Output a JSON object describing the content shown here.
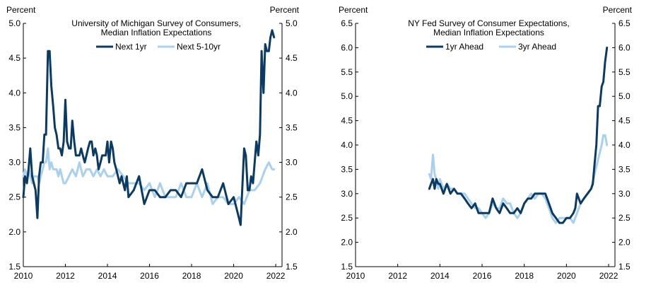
{
  "colors": {
    "dark": "#0b3a63",
    "light": "#a9d0ee",
    "axis": "#000000"
  },
  "chart_data": [
    {
      "type": "line",
      "title_lines": [
        "University of Michigan Survey of Consumers,",
        "Median Inflation Expectations"
      ],
      "ylabel_left": "Percent",
      "ylabel_right": "Percent",
      "xlim": [
        2010,
        2022.3
      ],
      "ylim": [
        1.5,
        5.0
      ],
      "yticks": [
        1.5,
        2.0,
        2.5,
        3.0,
        3.5,
        4.0,
        4.5,
        5.0
      ],
      "ytick_labels": [
        "1.5",
        "2.0",
        "2.5",
        "3.0",
        "3.5",
        "4.0",
        "4.5",
        "5.0"
      ],
      "xticks": [
        2010,
        2012,
        2014,
        2016,
        2018,
        2020,
        2022
      ],
      "xtick_labels": [
        "2010",
        "2012",
        "2014",
        "2016",
        "2018",
        "2020",
        "2022"
      ],
      "legend": [
        "Next 1yr",
        "Next 5-10yr"
      ],
      "series": [
        {
          "name": "Next 1yr",
          "x": [
            2010.0,
            2010.08,
            2010.17,
            2010.25,
            2010.33,
            2010.42,
            2010.5,
            2010.58,
            2010.67,
            2010.75,
            2010.83,
            2010.92,
            2011.0,
            2011.08,
            2011.17,
            2011.25,
            2011.33,
            2011.42,
            2011.5,
            2011.58,
            2011.67,
            2011.75,
            2011.83,
            2011.92,
            2012.0,
            2012.08,
            2012.17,
            2012.25,
            2012.33,
            2012.42,
            2012.5,
            2012.58,
            2012.67,
            2012.75,
            2012.83,
            2012.92,
            2013.0,
            2013.08,
            2013.17,
            2013.25,
            2013.33,
            2013.42,
            2013.5,
            2013.58,
            2013.67,
            2013.75,
            2013.83,
            2013.92,
            2014.0,
            2014.08,
            2014.17,
            2014.25,
            2014.33,
            2014.42,
            2014.5,
            2014.58,
            2014.67,
            2014.75,
            2014.83,
            2014.92,
            2015.0,
            2015.25,
            2015.5,
            2015.75,
            2016.0,
            2016.25,
            2016.5,
            2016.75,
            2017.0,
            2017.25,
            2017.5,
            2017.75,
            2018.0,
            2018.25,
            2018.5,
            2018.75,
            2019.0,
            2019.25,
            2019.5,
            2019.75,
            2020.0,
            2020.17,
            2020.25,
            2020.33,
            2020.42,
            2020.5,
            2020.58,
            2020.67,
            2020.75,
            2020.83,
            2020.92,
            2021.0,
            2021.08,
            2021.17,
            2021.25,
            2021.33,
            2021.42,
            2021.5,
            2021.58,
            2021.67,
            2021.75,
            2021.83,
            2021.92
          ],
          "y": [
            2.5,
            2.8,
            2.7,
            2.9,
            3.2,
            2.8,
            2.7,
            2.6,
            2.2,
            2.8,
            3.0,
            3.0,
            3.4,
            3.4,
            4.6,
            4.6,
            4.1,
            3.8,
            3.5,
            3.4,
            3.2,
            3.2,
            3.1,
            3.3,
            3.9,
            3.3,
            3.2,
            3.2,
            3.6,
            3.3,
            3.1,
            3.1,
            3.1,
            3.2,
            3.1,
            3.0,
            3.1,
            3.2,
            3.3,
            3.3,
            3.1,
            3.2,
            3.1,
            2.9,
            3.0,
            3.1,
            3.1,
            3.1,
            3.3,
            3.0,
            3.3,
            3.2,
            3.0,
            2.9,
            2.8,
            2.7,
            2.8,
            2.7,
            2.6,
            2.8,
            2.5,
            2.6,
            2.8,
            2.4,
            2.6,
            2.6,
            2.5,
            2.5,
            2.6,
            2.6,
            2.5,
            2.7,
            2.7,
            2.7,
            2.9,
            2.6,
            2.5,
            2.5,
            2.7,
            2.4,
            2.5,
            2.3,
            2.2,
            2.1,
            2.7,
            3.2,
            3.1,
            2.6,
            2.6,
            2.8,
            2.7,
            3.0,
            3.3,
            3.1,
            3.4,
            4.6,
            4.0,
            4.7,
            4.6,
            4.6,
            4.8,
            4.9,
            4.8
          ]
        },
        {
          "name": "Next 5-10yr",
          "x": [
            2010.0,
            2010.08,
            2010.17,
            2010.25,
            2010.33,
            2010.42,
            2010.5,
            2010.58,
            2010.67,
            2010.75,
            2010.83,
            2010.92,
            2011.0,
            2011.08,
            2011.17,
            2011.25,
            2011.33,
            2011.42,
            2011.5,
            2011.58,
            2011.67,
            2011.75,
            2011.83,
            2011.92,
            2012.0,
            2012.17,
            2012.33,
            2012.5,
            2012.67,
            2012.83,
            2013.0,
            2013.17,
            2013.33,
            2013.5,
            2013.67,
            2013.83,
            2014.0,
            2014.25,
            2014.5,
            2014.75,
            2015.0,
            2015.25,
            2015.5,
            2015.75,
            2016.0,
            2016.25,
            2016.5,
            2016.75,
            2017.0,
            2017.25,
            2017.5,
            2017.75,
            2018.0,
            2018.25,
            2018.5,
            2018.75,
            2019.0,
            2019.25,
            2019.5,
            2019.75,
            2020.0,
            2020.25,
            2020.5,
            2020.75,
            2021.0,
            2021.25,
            2021.5,
            2021.67,
            2021.83,
            2021.92
          ],
          "y": [
            2.8,
            2.9,
            2.8,
            2.9,
            2.8,
            2.7,
            2.8,
            2.8,
            2.8,
            2.7,
            2.8,
            2.9,
            3.0,
            3.0,
            3.2,
            2.9,
            3.0,
            2.9,
            2.9,
            2.9,
            2.8,
            2.9,
            2.8,
            2.7,
            2.7,
            2.8,
            2.9,
            2.8,
            3.0,
            2.8,
            2.9,
            2.9,
            2.8,
            2.9,
            2.8,
            2.9,
            2.8,
            2.8,
            2.9,
            2.8,
            2.7,
            2.7,
            2.7,
            2.6,
            2.7,
            2.5,
            2.7,
            2.5,
            2.5,
            2.5,
            2.7,
            2.5,
            2.5,
            2.7,
            2.5,
            2.7,
            2.4,
            2.5,
            2.5,
            2.4,
            2.4,
            2.5,
            2.4,
            2.6,
            2.6,
            2.7,
            2.9,
            3.0,
            2.9,
            2.9
          ]
        }
      ]
    },
    {
      "type": "line",
      "title_lines": [
        "NY Fed Survey of Consumer Expectations,",
        "Median Inflation Expectations"
      ],
      "ylabel_left": "Percent",
      "ylabel_right": "Percent",
      "xlim": [
        2010,
        2022.3
      ],
      "ylim": [
        1.5,
        6.5
      ],
      "yticks": [
        1.5,
        2.0,
        2.5,
        3.0,
        3.5,
        4.0,
        4.5,
        5.0,
        5.5,
        6.0,
        6.5
      ],
      "ytick_labels": [
        "1.5",
        "2.0",
        "2.5",
        "3.0",
        "3.5",
        "4.0",
        "4.5",
        "5.0",
        "5.5",
        "6.0",
        "6.5"
      ],
      "xticks": [
        2010,
        2012,
        2014,
        2016,
        2018,
        2020,
        2022
      ],
      "xtick_labels": [
        "2010",
        "2012",
        "2014",
        "2016",
        "2018",
        "2020",
        "2022"
      ],
      "legend": [
        "1yr Ahead",
        "3yr Ahead"
      ],
      "series": [
        {
          "name": "1yr Ahead",
          "x": [
            2013.5,
            2013.58,
            2013.67,
            2013.75,
            2013.83,
            2013.92,
            2014.0,
            2014.17,
            2014.33,
            2014.5,
            2014.67,
            2014.83,
            2015.0,
            2015.17,
            2015.33,
            2015.5,
            2015.67,
            2015.83,
            2016.0,
            2016.17,
            2016.33,
            2016.5,
            2016.67,
            2016.83,
            2017.0,
            2017.17,
            2017.33,
            2017.5,
            2017.67,
            2017.83,
            2018.0,
            2018.17,
            2018.33,
            2018.5,
            2018.67,
            2018.83,
            2019.0,
            2019.17,
            2019.33,
            2019.5,
            2019.67,
            2019.83,
            2020.0,
            2020.17,
            2020.33,
            2020.42,
            2020.5,
            2020.67,
            2020.83,
            2021.0,
            2021.17,
            2021.25,
            2021.33,
            2021.42,
            2021.5,
            2021.58,
            2021.67,
            2021.75,
            2021.83,
            2021.92
          ],
          "y": [
            3.1,
            3.2,
            3.3,
            3.1,
            3.3,
            3.2,
            3.2,
            3.0,
            3.2,
            3.0,
            3.1,
            3.0,
            3.0,
            2.9,
            2.8,
            2.7,
            2.8,
            2.6,
            2.6,
            2.6,
            2.6,
            2.9,
            2.7,
            2.6,
            2.8,
            2.7,
            2.6,
            2.6,
            2.7,
            2.6,
            2.8,
            2.9,
            2.9,
            3.0,
            3.0,
            3.0,
            3.0,
            2.8,
            2.6,
            2.5,
            2.4,
            2.4,
            2.5,
            2.5,
            2.6,
            2.7,
            3.0,
            2.8,
            2.9,
            3.0,
            3.1,
            3.2,
            3.6,
            4.0,
            4.8,
            4.8,
            5.2,
            5.3,
            5.7,
            6.0
          ]
        },
        {
          "name": "3yr Ahead",
          "x": [
            2013.5,
            2013.58,
            2013.67,
            2013.75,
            2013.83,
            2013.92,
            2014.0,
            2014.17,
            2014.33,
            2014.5,
            2014.67,
            2014.83,
            2015.0,
            2015.17,
            2015.33,
            2015.5,
            2015.67,
            2015.83,
            2016.0,
            2016.17,
            2016.33,
            2016.5,
            2016.67,
            2016.83,
            2017.0,
            2017.17,
            2017.33,
            2017.5,
            2017.67,
            2017.83,
            2018.0,
            2018.17,
            2018.33,
            2018.5,
            2018.67,
            2018.83,
            2019.0,
            2019.17,
            2019.33,
            2019.5,
            2019.67,
            2019.83,
            2020.0,
            2020.17,
            2020.33,
            2020.5,
            2020.67,
            2020.83,
            2021.0,
            2021.17,
            2021.33,
            2021.5,
            2021.67,
            2021.75,
            2021.83,
            2021.92
          ],
          "y": [
            3.4,
            3.3,
            3.8,
            3.4,
            3.3,
            3.1,
            3.3,
            3.1,
            3.2,
            3.1,
            3.1,
            3.0,
            3.0,
            3.0,
            2.9,
            2.8,
            2.7,
            2.7,
            2.6,
            2.5,
            2.6,
            2.8,
            2.7,
            2.7,
            2.9,
            2.8,
            2.8,
            2.6,
            2.5,
            2.6,
            2.8,
            2.9,
            3.0,
            2.9,
            3.0,
            3.0,
            2.9,
            2.7,
            2.5,
            2.4,
            2.5,
            2.5,
            2.5,
            2.5,
            2.4,
            2.6,
            2.8,
            2.9,
            3.0,
            3.1,
            3.4,
            3.7,
            4.0,
            4.2,
            4.2,
            4.0
          ]
        }
      ]
    }
  ]
}
